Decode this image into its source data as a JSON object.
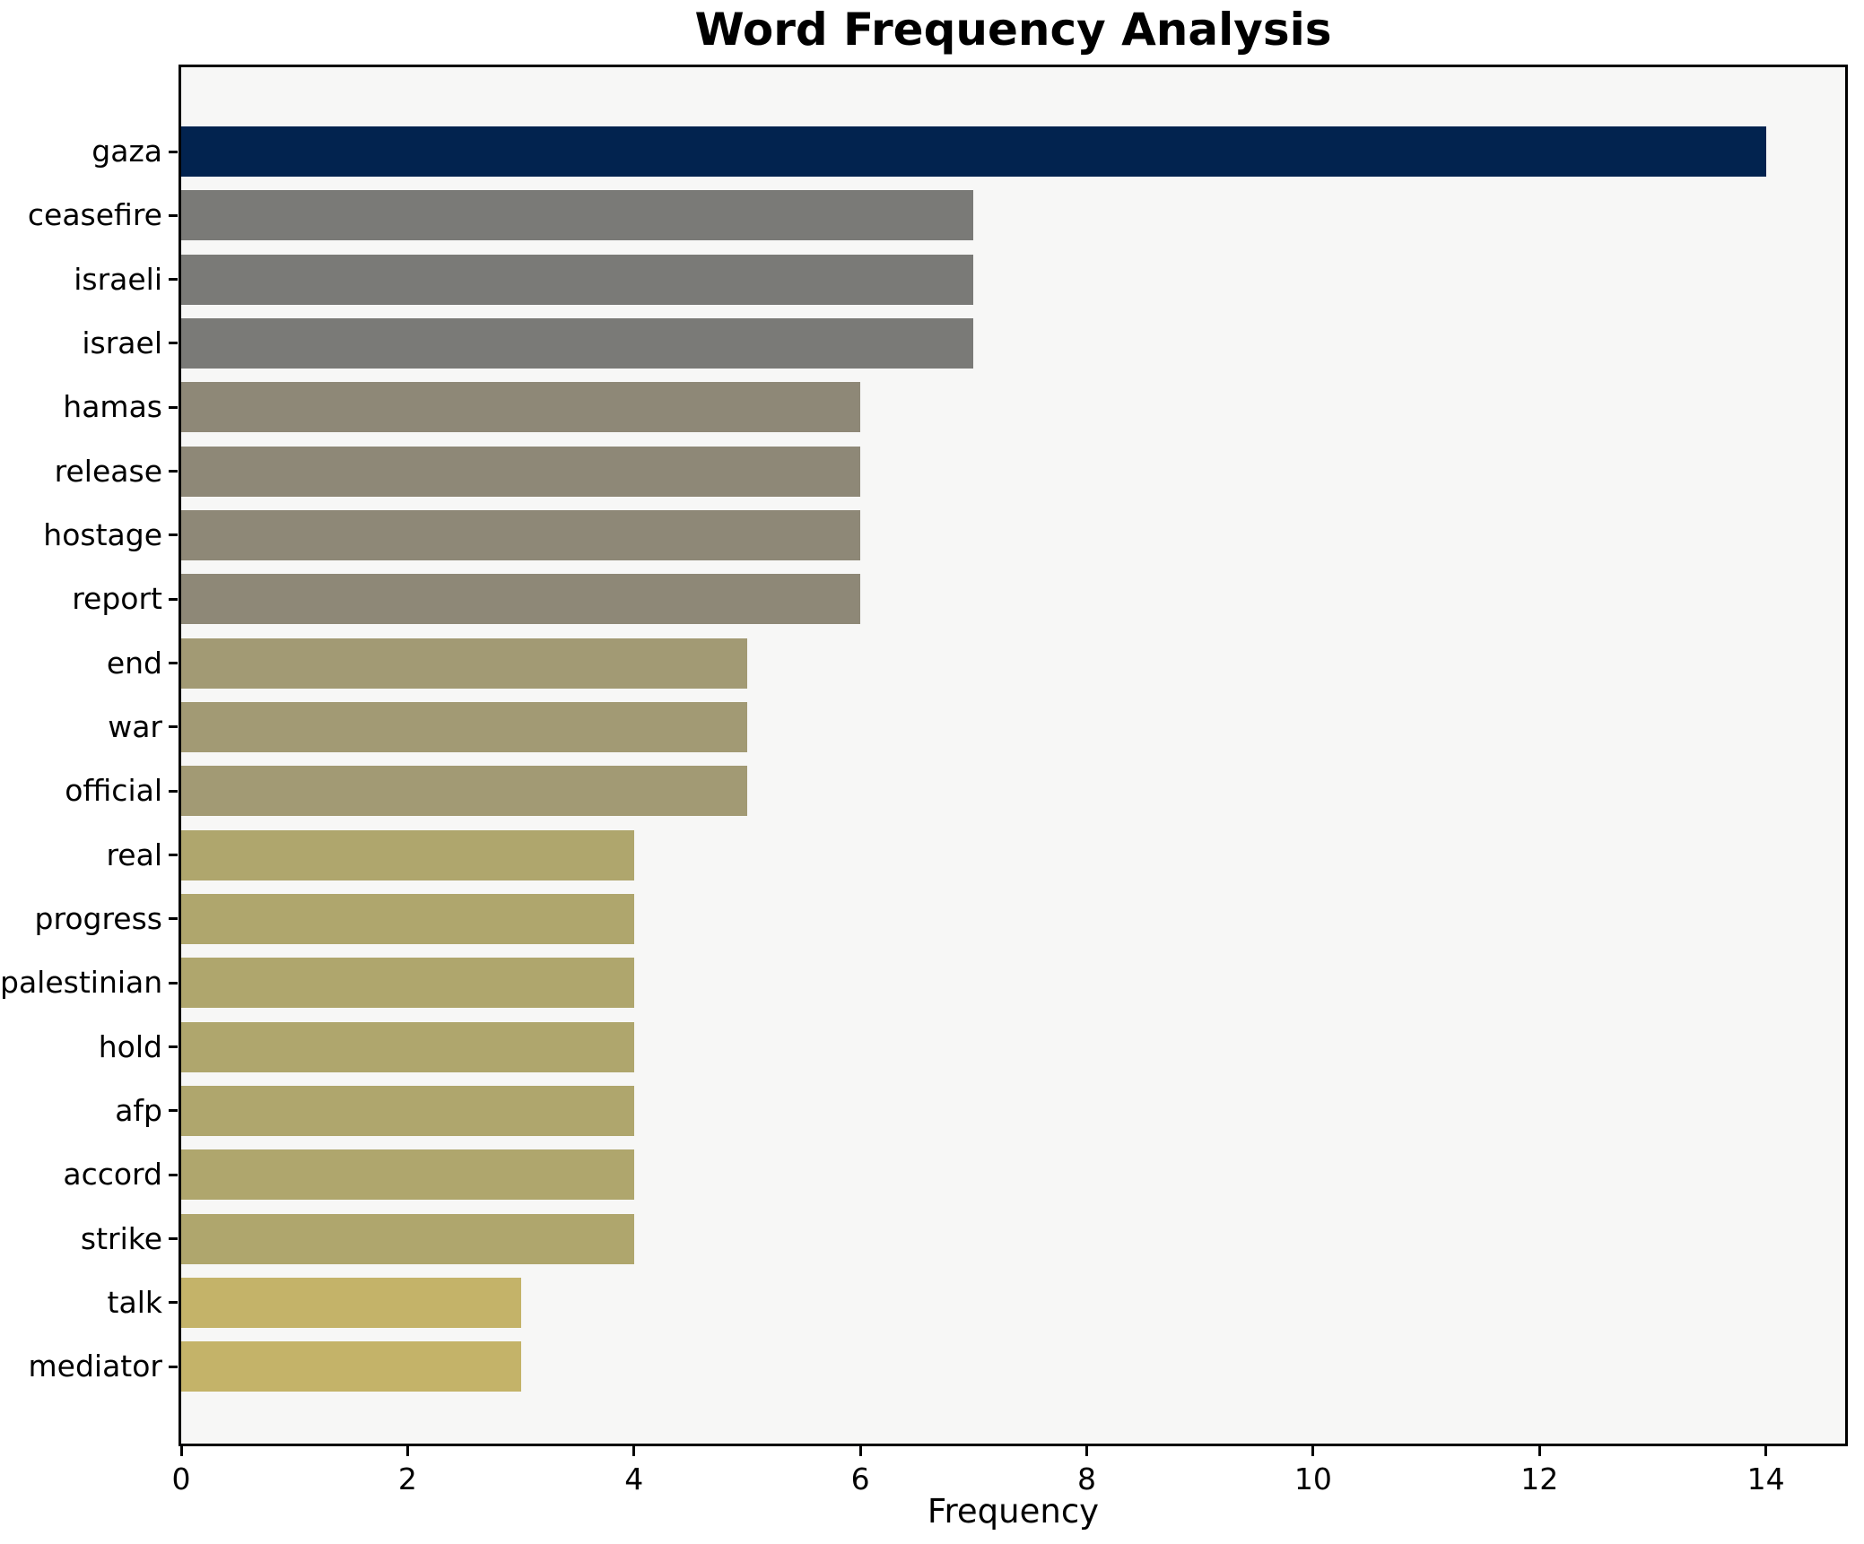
{
  "chart_data": {
    "type": "bar",
    "orientation": "horizontal",
    "title": "Word Frequency Analysis",
    "xlabel": "Frequency",
    "ylabel": "",
    "categories": [
      "gaza",
      "ceasefire",
      "israeli",
      "israel",
      "hamas",
      "release",
      "hostage",
      "report",
      "end",
      "war",
      "official",
      "real",
      "progress",
      "palestinian",
      "hold",
      "afp",
      "accord",
      "strike",
      "talk",
      "mediator"
    ],
    "values": [
      14,
      7,
      7,
      7,
      6,
      6,
      6,
      6,
      5,
      5,
      5,
      4,
      4,
      4,
      4,
      4,
      4,
      4,
      3,
      3
    ],
    "x_ticks": [
      0,
      2,
      4,
      6,
      8,
      10,
      12,
      14
    ],
    "xlim": [
      0,
      14.7
    ],
    "grid": false,
    "legend": false,
    "colors": {
      "by_value": {
        "14": "#02234f",
        "7": "#7a7a77",
        "6": "#8e8877",
        "5": "#a29a74",
        "4": "#afa66d",
        "3": "#c4b369"
      },
      "plot_background": "#f7f7f6",
      "figure_background": "#ffffff",
      "spine": "#000000",
      "text": "#000000"
    }
  }
}
